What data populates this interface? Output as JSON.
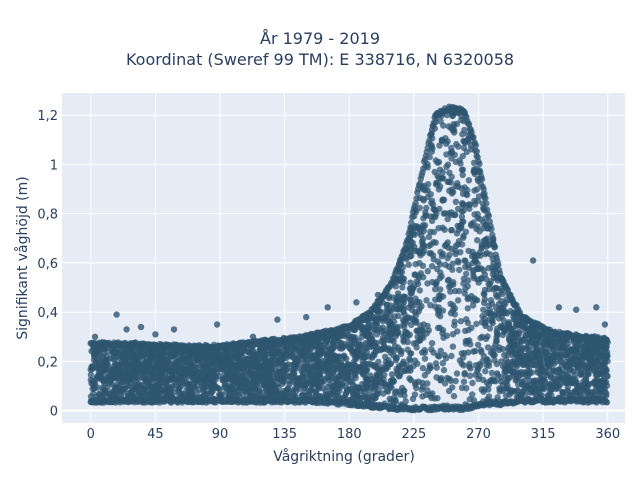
{
  "chart_data": {
    "type": "scatter",
    "title_lines": [
      "År 1979 - 2019",
      "Koordinat (Sweref 99 TM): E 338716, N 6320058"
    ],
    "xlabel": "Vågriktning (grader)",
    "ylabel": "Signifikant våghöjd (m)",
    "xlim": [
      -20,
      372
    ],
    "ylim": [
      -0.05,
      1.29
    ],
    "x_ticks": [
      0,
      45,
      90,
      135,
      180,
      225,
      270,
      315,
      360
    ],
    "x_tick_labels": [
      "0",
      "45",
      "90",
      "135",
      "180",
      "225",
      "270",
      "315",
      "360"
    ],
    "y_ticks": [
      0,
      0.2,
      0.4,
      0.6,
      0.8,
      1,
      1.2
    ],
    "y_tick_labels": [
      "0",
      "0,2",
      "0,4",
      "0,6",
      "0,8",
      "1",
      "1,2"
    ],
    "marker_color": "#2f5570",
    "background_color": "#e5ecf6",
    "grid": true,
    "envelope": {
      "x": [
        0,
        30,
        60,
        90,
        120,
        150,
        180,
        195,
        210,
        220,
        230,
        240,
        250,
        260,
        268,
        275,
        285,
        300,
        320,
        340,
        360
      ],
      "y_min": [
        0.04,
        0.04,
        0.04,
        0.04,
        0.04,
        0.04,
        0.03,
        0.02,
        0.01,
        0.01,
        0.01,
        0.01,
        0.01,
        0.01,
        0.02,
        0.03,
        0.03,
        0.04,
        0.04,
        0.04,
        0.04
      ],
      "y_max": [
        0.27,
        0.27,
        0.26,
        0.26,
        0.28,
        0.3,
        0.34,
        0.4,
        0.52,
        0.68,
        0.95,
        1.2,
        1.23,
        1.22,
        1.08,
        0.85,
        0.55,
        0.38,
        0.32,
        0.3,
        0.29
      ]
    },
    "outliers": [
      {
        "x": 3,
        "y": 0.3
      },
      {
        "x": 18,
        "y": 0.39
      },
      {
        "x": 25,
        "y": 0.33
      },
      {
        "x": 35,
        "y": 0.34
      },
      {
        "x": 45,
        "y": 0.31
      },
      {
        "x": 58,
        "y": 0.33
      },
      {
        "x": 88,
        "y": 0.35
      },
      {
        "x": 130,
        "y": 0.37
      },
      {
        "x": 150,
        "y": 0.38
      },
      {
        "x": 165,
        "y": 0.42
      },
      {
        "x": 185,
        "y": 0.44
      },
      {
        "x": 200,
        "y": 0.47
      },
      {
        "x": 222,
        "y": 0.7
      },
      {
        "x": 308,
        "y": 0.61
      },
      {
        "x": 326,
        "y": 0.42
      },
      {
        "x": 338,
        "y": 0.41
      },
      {
        "x": 352,
        "y": 0.42
      },
      {
        "x": 358,
        "y": 0.35
      },
      {
        "x": 113,
        "y": 0.3
      },
      {
        "x": 240,
        "y": 0.005
      }
    ]
  }
}
